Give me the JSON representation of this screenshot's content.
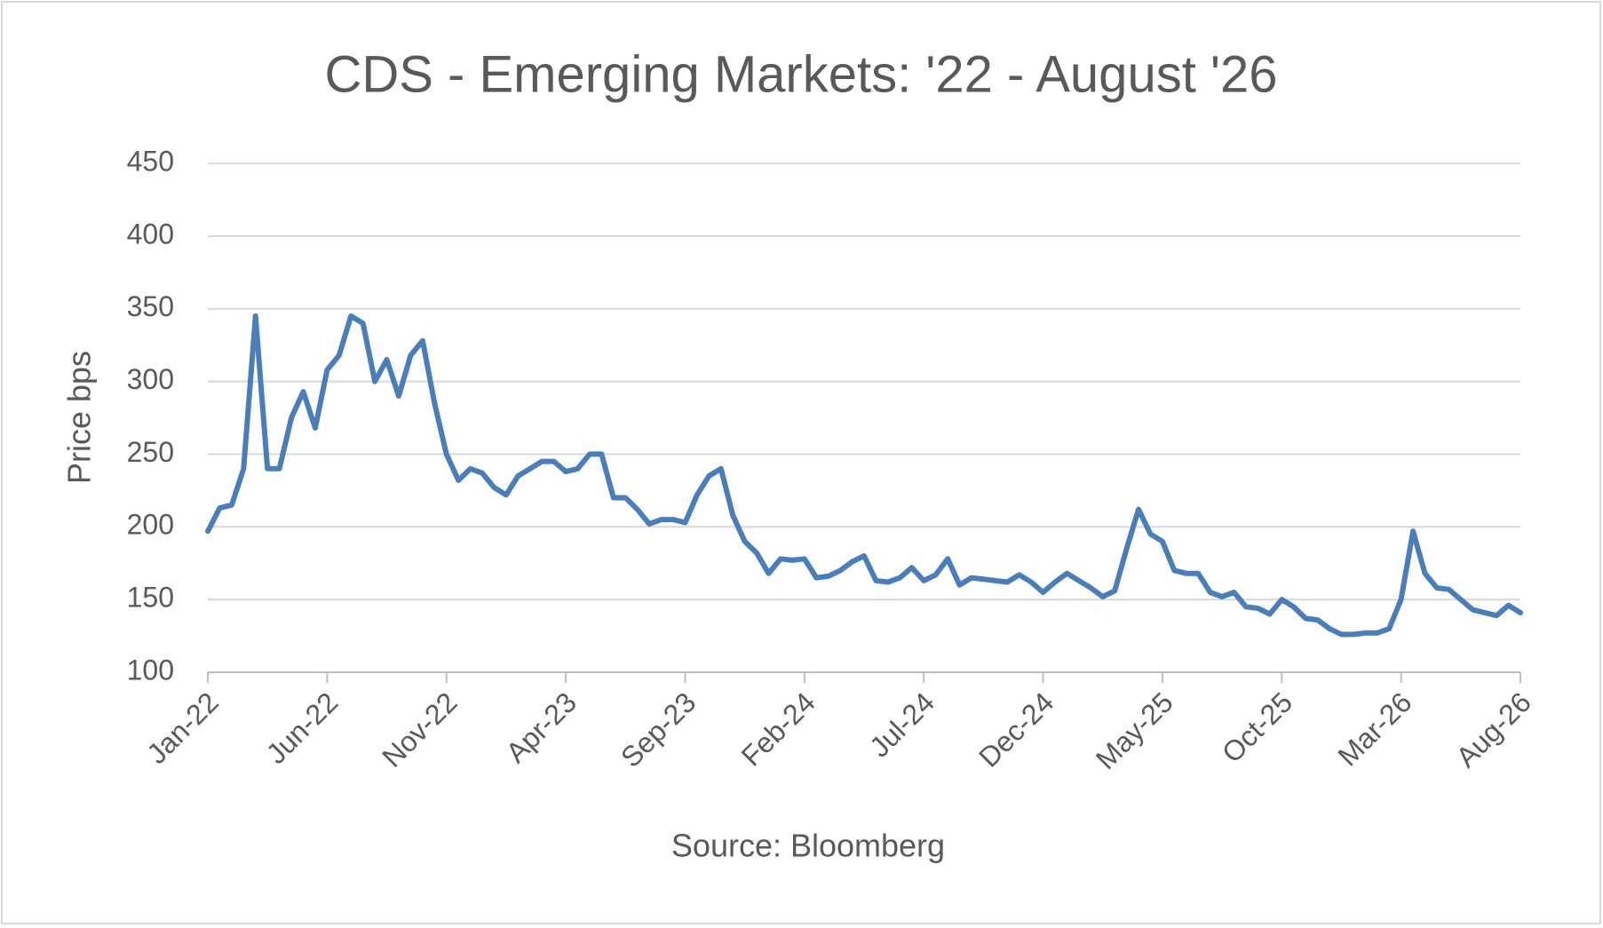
{
  "chart_data": {
    "type": "line",
    "title": "CDS - Emerging Markets: '22 - August '26",
    "y_label": "Price bps",
    "x_label": "Source: Bloomberg",
    "categories": [
      "Jan-22",
      null,
      null,
      null,
      null,
      null,
      null,
      null,
      null,
      null,
      "Jun-22",
      null,
      null,
      null,
      null,
      null,
      null,
      null,
      null,
      null,
      "Nov-22",
      null,
      null,
      null,
      null,
      null,
      null,
      null,
      null,
      null,
      "Apr-23",
      null,
      null,
      null,
      null,
      null,
      null,
      null,
      null,
      null,
      "Sep-23",
      null,
      null,
      null,
      null,
      null,
      null,
      null,
      null,
      null,
      "Feb-24",
      null,
      null,
      null,
      null,
      null,
      null,
      null,
      null,
      null,
      "Jul-24",
      null,
      null,
      null,
      null,
      null,
      null,
      null,
      null,
      null,
      "Dec-24",
      null,
      null,
      null,
      null,
      null,
      null,
      null,
      null,
      null,
      "May-25",
      null,
      null,
      null,
      null,
      null,
      null,
      null,
      null,
      null,
      "Oct-25",
      null,
      null,
      null,
      null,
      null,
      null,
      null,
      null,
      null,
      "Mar-26",
      null,
      null,
      null,
      null,
      null,
      null,
      null,
      null,
      null,
      "Aug-26"
    ],
    "series": [
      {
        "name": "CDS",
        "color": "#4a7ebb",
        "values": [
          197,
          213,
          215,
          240,
          345,
          240,
          240,
          275,
          293,
          268,
          308,
          318,
          345,
          340,
          300,
          315,
          290,
          318,
          328,
          285,
          250,
          232,
          240,
          237,
          227,
          222,
          235,
          240,
          245,
          245,
          238,
          240,
          250,
          250,
          220,
          220,
          212,
          202,
          205,
          205,
          203,
          222,
          235,
          240,
          208,
          190,
          182,
          168,
          178,
          177,
          178,
          165,
          166,
          170,
          176,
          180,
          163,
          162,
          165,
          172,
          163,
          167,
          178,
          160,
          165,
          164,
          163,
          162,
          167,
          162,
          155,
          162,
          168,
          163,
          158,
          152,
          156,
          185,
          212,
          195,
          190,
          170,
          168,
          168,
          155,
          152,
          155,
          145,
          144,
          140,
          150,
          145,
          137,
          136,
          130,
          126,
          126,
          127,
          127,
          130,
          150,
          197,
          168,
          158,
          157,
          150,
          143,
          141,
          139,
          146,
          141
        ]
      }
    ],
    "ylim": [
      100,
      450
    ],
    "yticks": [
      100,
      150,
      200,
      250,
      300,
      350,
      400,
      450
    ],
    "grid": true
  }
}
